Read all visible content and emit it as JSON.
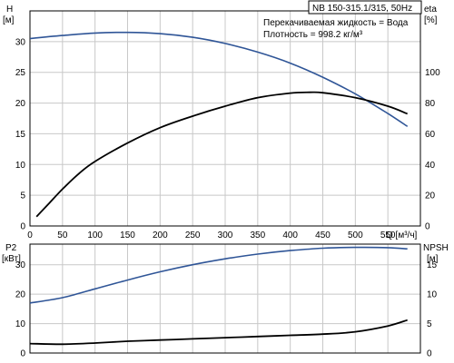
{
  "chart_data": [
    {
      "type": "line",
      "panel": "top",
      "title": "NB 150-315.1/315, 50Hz",
      "annotations": [
        "Перекачиваемая жидкость = Вода",
        "Плотность = 998.2 кг/м³"
      ],
      "xlabel": "Q [м³/ч]",
      "ylabel_left": [
        "H",
        "[м]"
      ],
      "ylabel_right": [
        "eta",
        "[%]"
      ],
      "x_ticks": [
        0,
        50,
        100,
        150,
        200,
        250,
        300,
        350,
        400,
        450,
        500,
        550
      ],
      "y_left_ticks": [
        0,
        5,
        10,
        15,
        20,
        25,
        30
      ],
      "y_right_ticks": [
        0,
        20,
        40,
        60,
        80,
        100
      ],
      "xlim": [
        0,
        600
      ],
      "ylim_left": [
        0,
        35
      ],
      "ylim_right": [
        0,
        140
      ],
      "grid": true,
      "series": [
        {
          "axis": "left",
          "color": "#2f5597",
          "x": [
            0,
            50,
            100,
            150,
            200,
            250,
            300,
            350,
            400,
            450,
            500,
            550,
            580
          ],
          "y": [
            30.5,
            31.0,
            31.4,
            31.5,
            31.3,
            30.7,
            29.7,
            28.3,
            26.5,
            24.2,
            21.5,
            18.3,
            16.2
          ]
        },
        {
          "axis": "right",
          "color": "#000000",
          "x": [
            10,
            30,
            50,
            75,
            100,
            150,
            200,
            250,
            300,
            350,
            400,
            430,
            450,
            500,
            550,
            580
          ],
          "y": [
            6,
            15,
            24,
            34,
            42,
            54,
            64,
            71.5,
            78,
            83.5,
            86.5,
            87,
            86.7,
            83.5,
            78,
            73
          ]
        }
      ]
    },
    {
      "type": "line",
      "panel": "bottom",
      "xlim": [
        0,
        600
      ],
      "ylabel_left": [
        "P2",
        "[кВт]"
      ],
      "ylabel_right": [
        "NPSH",
        "[м]"
      ],
      "y_left_ticks": [
        0,
        10,
        20,
        30
      ],
      "y_right_ticks": [
        0,
        5,
        10,
        15
      ],
      "ylim_left": [
        0,
        37
      ],
      "ylim_right": [
        0,
        18.5
      ],
      "grid": true,
      "series": [
        {
          "axis": "left",
          "color": "#2f5597",
          "x": [
            0,
            50,
            100,
            150,
            200,
            250,
            300,
            350,
            400,
            450,
            500,
            550,
            580
          ],
          "y": [
            17,
            18.8,
            21.8,
            24.8,
            27.6,
            30.0,
            32.0,
            33.6,
            34.8,
            35.6,
            35.9,
            35.8,
            35.4
          ]
        },
        {
          "axis": "right",
          "color": "#000000",
          "x": [
            0,
            50,
            100,
            150,
            200,
            250,
            300,
            350,
            400,
            450,
            500,
            550,
            580
          ],
          "y": [
            1.6,
            1.5,
            1.7,
            2.0,
            2.2,
            2.4,
            2.6,
            2.8,
            3.0,
            3.2,
            3.6,
            4.6,
            5.6
          ]
        }
      ]
    }
  ]
}
